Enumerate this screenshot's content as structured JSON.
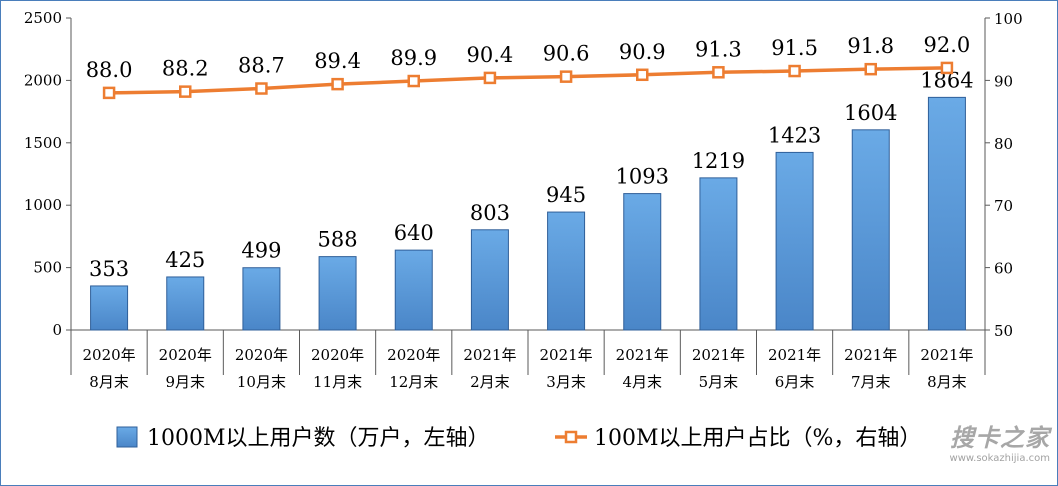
{
  "chart_data": {
    "type": "bar+line",
    "categories": [
      [
        "2020年",
        "8月末"
      ],
      [
        "2020年",
        "9月末"
      ],
      [
        "2020年",
        "10月末"
      ],
      [
        "2020年",
        "11月末"
      ],
      [
        "2020年",
        "12月末"
      ],
      [
        "2021年",
        "2月末"
      ],
      [
        "2021年",
        "3月末"
      ],
      [
        "2021年",
        "4月末"
      ],
      [
        "2021年",
        "5月末"
      ],
      [
        "2021年",
        "6月末"
      ],
      [
        "2021年",
        "7月末"
      ],
      [
        "2021年",
        "8月末"
      ]
    ],
    "series": [
      {
        "name": "1000M以上用户数（万户，左轴）",
        "type": "bar",
        "axis": "left",
        "values": [
          353,
          425,
          499,
          588,
          640,
          803,
          945,
          1093,
          1219,
          1423,
          1604,
          1864
        ],
        "labels": [
          "353",
          "425",
          "499",
          "588",
          "640",
          "803",
          "945",
          "1093",
          "1219",
          "1423",
          "1604",
          "1864"
        ],
        "color": "#5b9bd5"
      },
      {
        "name": "100M以上用户占比（%，右轴）",
        "type": "line",
        "axis": "right",
        "values": [
          88.0,
          88.2,
          88.7,
          89.4,
          89.9,
          90.4,
          90.6,
          90.9,
          91.3,
          91.5,
          91.8,
          92.0
        ],
        "labels": [
          "88.0",
          "88.2",
          "88.7",
          "89.4",
          "89.9",
          "90.4",
          "90.6",
          "90.9",
          "91.3",
          "91.5",
          "91.8",
          "92.0"
        ],
        "color": "#ed7d31"
      }
    ],
    "y_left": {
      "min": 0,
      "max": 2500,
      "ticks": [
        0,
        500,
        1000,
        1500,
        2000,
        2500
      ],
      "tick_labels": [
        "0",
        "500",
        "1000",
        "1500",
        "2000",
        "2500"
      ]
    },
    "y_right": {
      "min": 50,
      "max": 100,
      "ticks": [
        50,
        60,
        70,
        80,
        90,
        100
      ],
      "tick_labels": [
        "50",
        "60",
        "70",
        "80",
        "90",
        "100"
      ]
    },
    "grid": false,
    "legend_position": "bottom"
  },
  "watermark": {
    "logo": "搜卡之家",
    "site": "www.sokazhijia.com"
  }
}
